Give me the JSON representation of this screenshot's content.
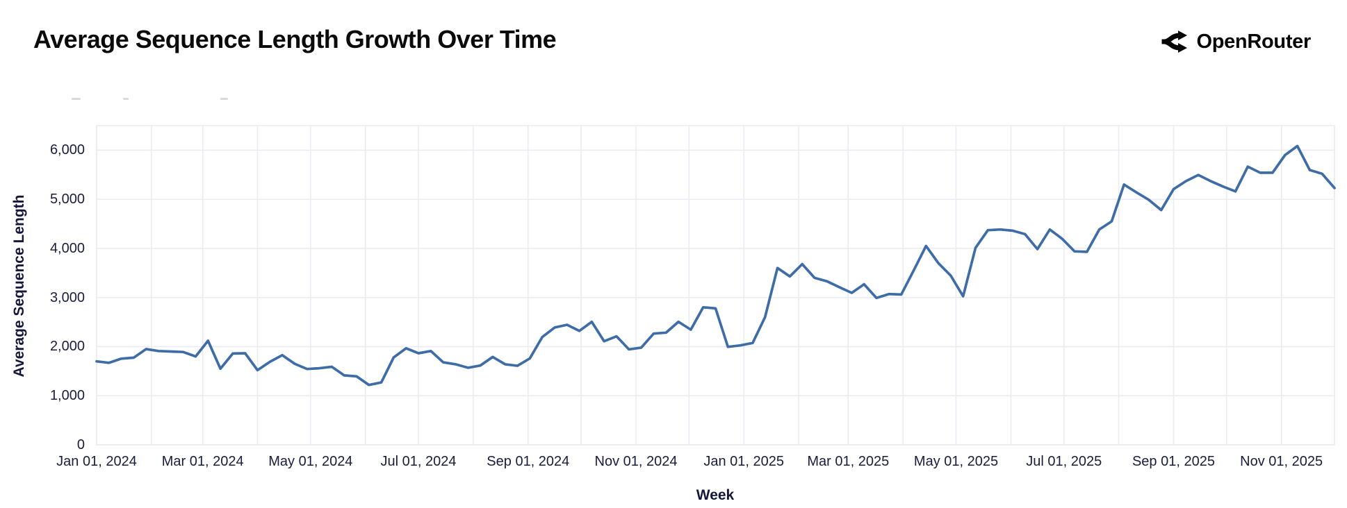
{
  "header": {
    "title": "Average Sequence Length Growth Over Time",
    "brand": {
      "name": "OpenRouter"
    }
  },
  "chart_data": {
    "type": "line",
    "title": "Average Sequence Length Growth Over Time",
    "xlabel": "Week",
    "ylabel": "Average Sequence Length",
    "grid": true,
    "legend_position": "none",
    "x_start": "Jan 01, 2024",
    "x_end": "Dec 01, 2025",
    "x_cadence": "weekly",
    "ylim": [
      0,
      6500
    ],
    "y_ticks": [
      0,
      1000,
      2000,
      3000,
      4000,
      5000,
      6000
    ],
    "y_tick_labels": [
      "0",
      "1,000",
      "2,000",
      "3,000",
      "4,000",
      "5,000",
      "6,000"
    ],
    "x_ticks": [
      {
        "label": "Jan 01, 2024",
        "year": 2024,
        "month": 1
      },
      {
        "label": "Mar 01, 2024",
        "year": 2024,
        "month": 3
      },
      {
        "label": "May 01, 2024",
        "year": 2024,
        "month": 5
      },
      {
        "label": "Jul 01, 2024",
        "year": 2024,
        "month": 7
      },
      {
        "label": "Sep 01, 2024",
        "year": 2024,
        "month": 9
      },
      {
        "label": "Nov 01, 2024",
        "year": 2024,
        "month": 11
      },
      {
        "label": "Jan 01, 2025",
        "year": 2025,
        "month": 1
      },
      {
        "label": "Mar 01, 2025",
        "year": 2025,
        "month": 3
      },
      {
        "label": "May 01, 2025",
        "year": 2025,
        "month": 5
      },
      {
        "label": "Jul 01, 2025",
        "year": 2025,
        "month": 7
      },
      {
        "label": "Sep 01, 2025",
        "year": 2025,
        "month": 9
      },
      {
        "label": "Nov 01, 2025",
        "year": 2025,
        "month": 11
      }
    ],
    "series": [
      {
        "name": "Average Sequence Length",
        "color": "#3e6ca6",
        "values": [
          1700,
          1670,
          1755,
          1775,
          1950,
          1910,
          1900,
          1890,
          1800,
          2120,
          1550,
          1860,
          1865,
          1520,
          1690,
          1825,
          1650,
          1545,
          1560,
          1590,
          1415,
          1395,
          1220,
          1270,
          1780,
          1965,
          1865,
          1910,
          1680,
          1640,
          1570,
          1615,
          1790,
          1640,
          1610,
          1760,
          2195,
          2390,
          2445,
          2320,
          2505,
          2110,
          2210,
          1945,
          1980,
          2265,
          2285,
          2505,
          2345,
          2800,
          2780,
          1995,
          2025,
          2075,
          2600,
          3600,
          3430,
          3680,
          3400,
          3330,
          3210,
          3095,
          3270,
          2990,
          3070,
          3060,
          3550,
          4050,
          3700,
          3445,
          3025,
          4010,
          4370,
          4385,
          4360,
          4290,
          3985,
          4385,
          4195,
          3940,
          3930,
          4385,
          4550,
          5300,
          5140,
          4990,
          4780,
          5205,
          5370,
          5495,
          5370,
          5260,
          5160,
          5665,
          5540,
          5540,
          5900,
          6085,
          5595,
          5520,
          5230
        ]
      }
    ],
    "colors": {
      "line": "#3e6ca6",
      "gridline": "#eaeaf2",
      "axis_text": "#1a1c3d",
      "title_text": "#0b0b0b"
    }
  }
}
